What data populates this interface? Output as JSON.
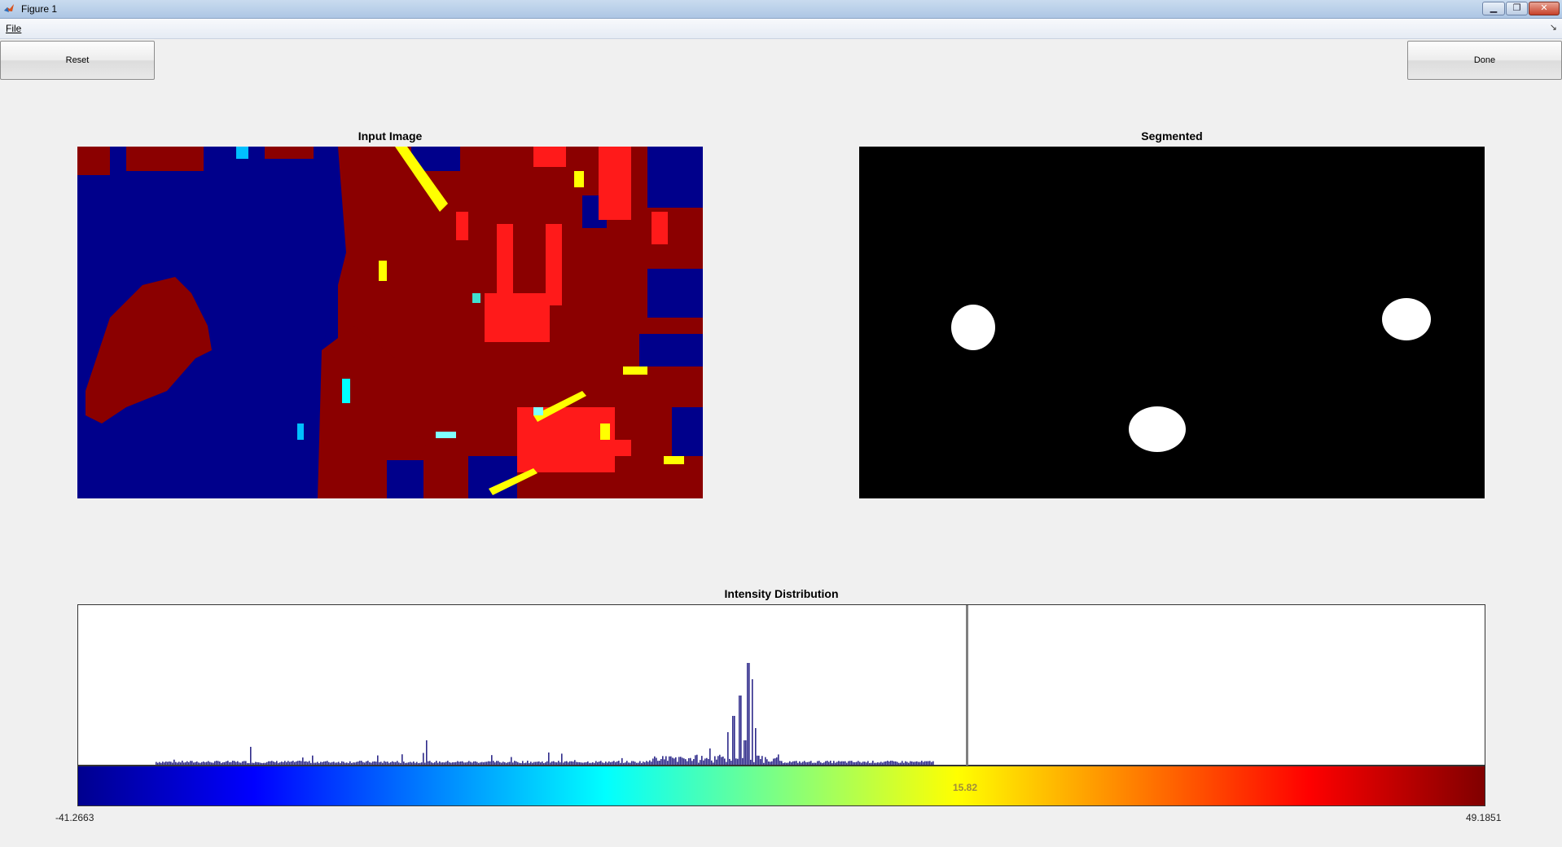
{
  "window": {
    "title": "Figure 1"
  },
  "menu": {
    "file_label": "File"
  },
  "buttons": {
    "reset_label": "Reset",
    "done_label": "Done"
  },
  "axes": {
    "input_title": "Input Image",
    "segmented_title": "Segmented",
    "histogram_title": "Intensity Distribution"
  },
  "colorbar": {
    "min_label": "-41.2663",
    "max_label": "49.1851",
    "threshold_label": "15.82",
    "min": -41.2663,
    "max": 49.1851,
    "threshold": 15.82,
    "colormap": "jet"
  },
  "colors": {
    "histogram_bar": "#2e2a8a",
    "threshold_line": "#808080",
    "background": "#f0f0f0"
  }
}
